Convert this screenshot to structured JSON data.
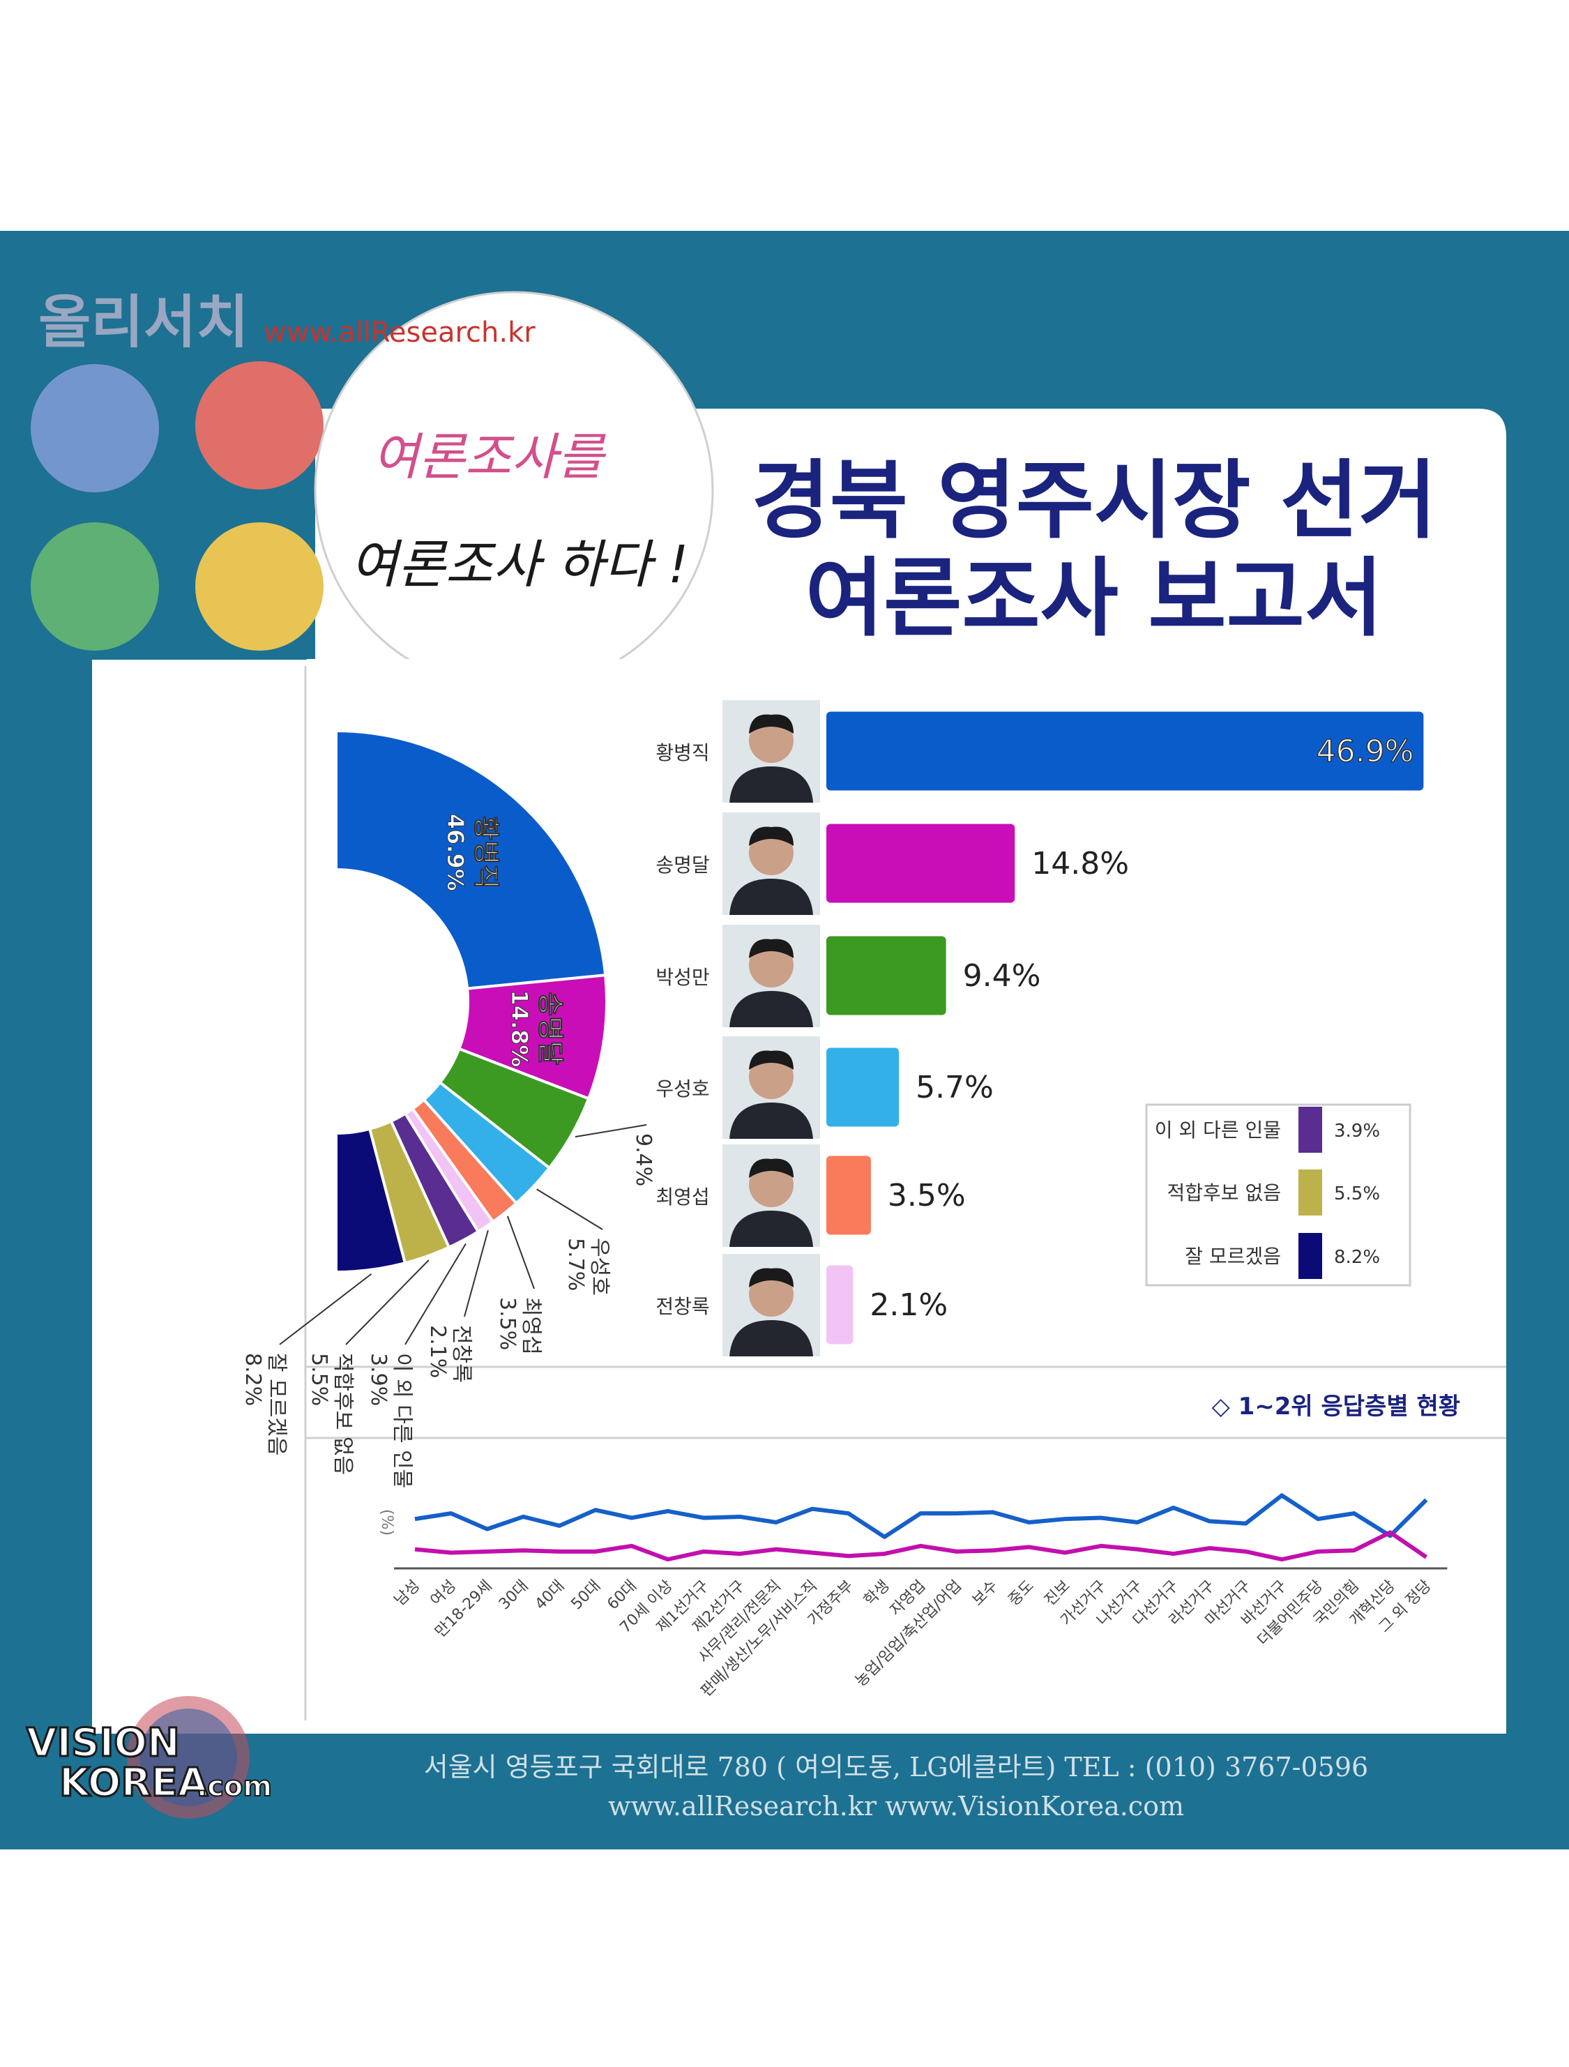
{
  "header": {
    "brand": "올리서치",
    "url": "www.allResearch.kr",
    "slogan_1": "여론조사를",
    "slogan_2": "여론조사 하다 !",
    "title_1": "경북 영주시장 선거",
    "title_2": "여론조사 보고서"
  },
  "footer": {
    "logo_1": "VISION",
    "logo_2": "KOREA",
    "logo_3": ".com",
    "address": "서울시 영등포구 국회대로 780 ( 여의도동, LG에클라트)  TEL : (010) 3767-0596",
    "sites": "www.allResearch.kr      www.VisionKorea.com"
  },
  "chart_data": [
    {
      "type": "pie",
      "categories": [
        "황병직",
        "송명달",
        null,
        "우성호",
        "최영섭",
        "전창록",
        "이 외 다른 인물",
        "적합후보 없음",
        "잘 모르겠음"
      ],
      "values": [
        46.9,
        14.8,
        9.4,
        5.7,
        3.5,
        2.1,
        3.9,
        5.5,
        8.2
      ],
      "value_labels": [
        "46.9%",
        "14.8%",
        "9.4%",
        "5.7%",
        "3.5%",
        "2.1%",
        "3.9%",
        "5.5%",
        "8.2%"
      ],
      "colors": [
        "#0b5ccb",
        "#c90eb8",
        "#3c9a22",
        "#33b0ea",
        "#fa7a5c",
        "#f1c4f5",
        "#5a2d91",
        "#bdb24a",
        "#0b0b78"
      ]
    },
    {
      "type": "bar",
      "categories": [
        "황병직",
        "송명달",
        "박성만",
        "우성호",
        "최영섭",
        "전창록",
        "이 외 다른 인물",
        "적합후보 없음",
        "잘 모르겠음"
      ],
      "values": [
        46.9,
        14.8,
        9.4,
        5.7,
        3.5,
        2.1,
        3.9,
        5.5,
        8.2
      ],
      "value_labels": [
        "46.9%",
        "14.8%",
        "9.4%",
        "5.7%",
        "3.5%",
        "2.1%",
        "3.9%",
        "5.5%",
        "8.2%"
      ],
      "colors": [
        "#0b5ccb",
        "#c90eb8",
        "#3c9a22",
        "#33b0ea",
        "#fa7a5c",
        "#f1c4f5",
        "#5a2d91",
        "#bdb24a",
        "#0b0b78"
      ],
      "xlim": [
        0,
        50
      ]
    },
    {
      "type": "line",
      "title": "◇ 1~2위 응답층별 현황",
      "ylabel": "(%)",
      "categories": [
        "남성",
        "여성",
        "만18-29세",
        "30대",
        "40대",
        "50대",
        "60대",
        "70세 이상",
        "제1선거구",
        "제2선거구",
        "사무/관리/전문직",
        "판매/생산/노무/서비스직",
        "가정주부",
        "학생",
        "자영업",
        "농업/임업/축산업/어업",
        "보수",
        "중도",
        "진보",
        "가선거구",
        "나선거구",
        "다선거구",
        "라선거구",
        "마선거구",
        "바선거구",
        "더불어민주당",
        "국민의힘",
        "개혁신당",
        "그 외 정당"
      ],
      "series": [
        {
          "color": "#1560c9",
          "values": [
            44,
            49,
            35,
            46,
            38,
            52,
            45,
            51,
            45,
            46,
            41,
            53,
            49,
            28,
            49,
            49,
            50,
            41,
            44,
            45,
            41,
            54,
            42,
            40,
            65,
            44,
            49,
            29,
            61
          ]
        },
        {
          "color": "#c20fae",
          "values": [
            17,
            14,
            15,
            16,
            15,
            15,
            20,
            8,
            15,
            13,
            17,
            14,
            11,
            13,
            20,
            15,
            16,
            19,
            14,
            20,
            17,
            13,
            18,
            15,
            8,
            15,
            16,
            32,
            10
          ]
        }
      ],
      "ylim": [
        0,
        100
      ]
    }
  ]
}
